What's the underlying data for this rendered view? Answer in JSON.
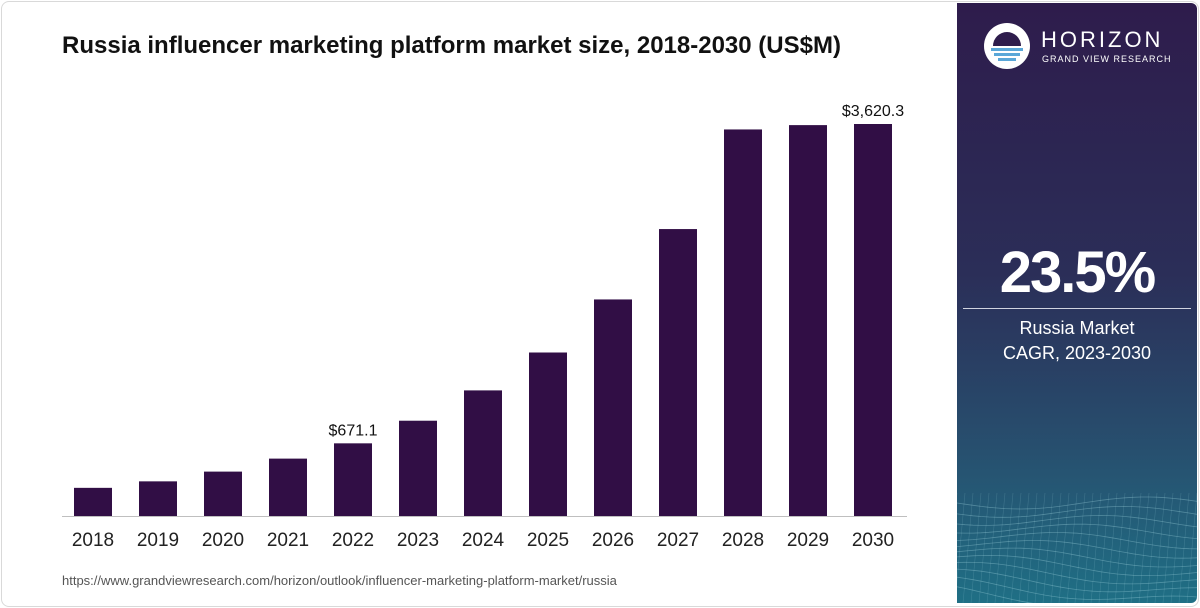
{
  "chart_data": {
    "type": "bar",
    "title": "Russia influencer marketing platform market size, 2018-2030 (US$M)",
    "categories": [
      "2018",
      "2019",
      "2020",
      "2021",
      "2022",
      "2023",
      "2024",
      "2025",
      "2026",
      "2027",
      "2028",
      "2029",
      "2030"
    ],
    "values": [
      260,
      320,
      410,
      530,
      671.1,
      880,
      1160,
      1510,
      2000,
      2650,
      3570,
      3610,
      3620.3
    ],
    "data_labels": [
      {
        "category": "2022",
        "text": "$671.1"
      },
      {
        "category": "2030",
        "text": "$3,620.3"
      }
    ],
    "xlabel": "",
    "ylabel": "",
    "ylim": [
      0,
      3800
    ],
    "grid": false,
    "legend": "none",
    "bar_color": "#310e45"
  },
  "source_url": "https://www.grandviewresearch.com/horizon/outlook/influencer-marketing-platform-market/russia",
  "brand": {
    "name": "HORIZON",
    "sub": "GRAND VIEW RESEARCH"
  },
  "sidebar": {
    "cagr_value": "23.5%",
    "cagr_label_line1": "Russia Market",
    "cagr_label_line2": "CAGR, 2023-2030"
  }
}
